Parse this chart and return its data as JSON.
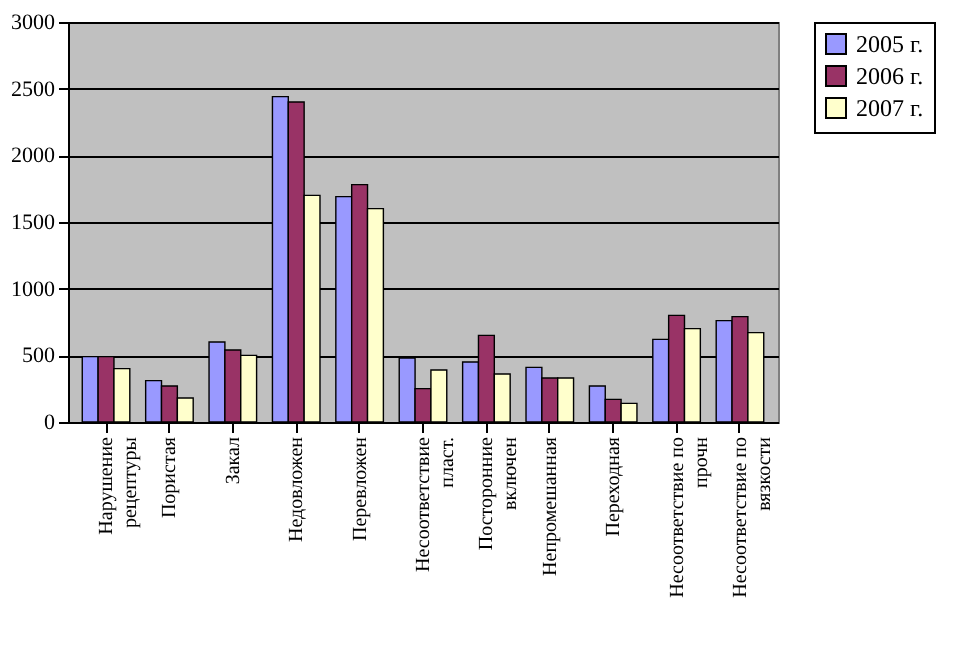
{
  "chart_data": {
    "type": "bar",
    "categories": [
      "Нарушение рецептуры",
      "Пористая",
      "Закал",
      "Недовложен",
      "Перевложен",
      "Несоответствие пласт.",
      "Посторонние включен",
      "Непромешанная",
      "Переходная",
      "Несоответствие по прочн",
      "Несоответствие по вязкости"
    ],
    "series": [
      {
        "name": "2005 г.",
        "color": "#9999ff",
        "values": [
          490,
          310,
          600,
          2440,
          1690,
          480,
          450,
          410,
          270,
          620,
          760
        ]
      },
      {
        "name": "2006 г.",
        "color": "#993366",
        "values": [
          490,
          270,
          540,
          2400,
          1780,
          250,
          650,
          330,
          170,
          800,
          790
        ]
      },
      {
        "name": "2007 г.",
        "color": "#ffffcc",
        "values": [
          400,
          180,
          500,
          1700,
          1600,
          390,
          360,
          330,
          140,
          700,
          670
        ]
      }
    ],
    "ylim": [
      0,
      3000
    ],
    "yticks": [
      0,
      500,
      1000,
      1500,
      2000,
      2500,
      3000
    ],
    "grid": "y",
    "legend": "right"
  }
}
